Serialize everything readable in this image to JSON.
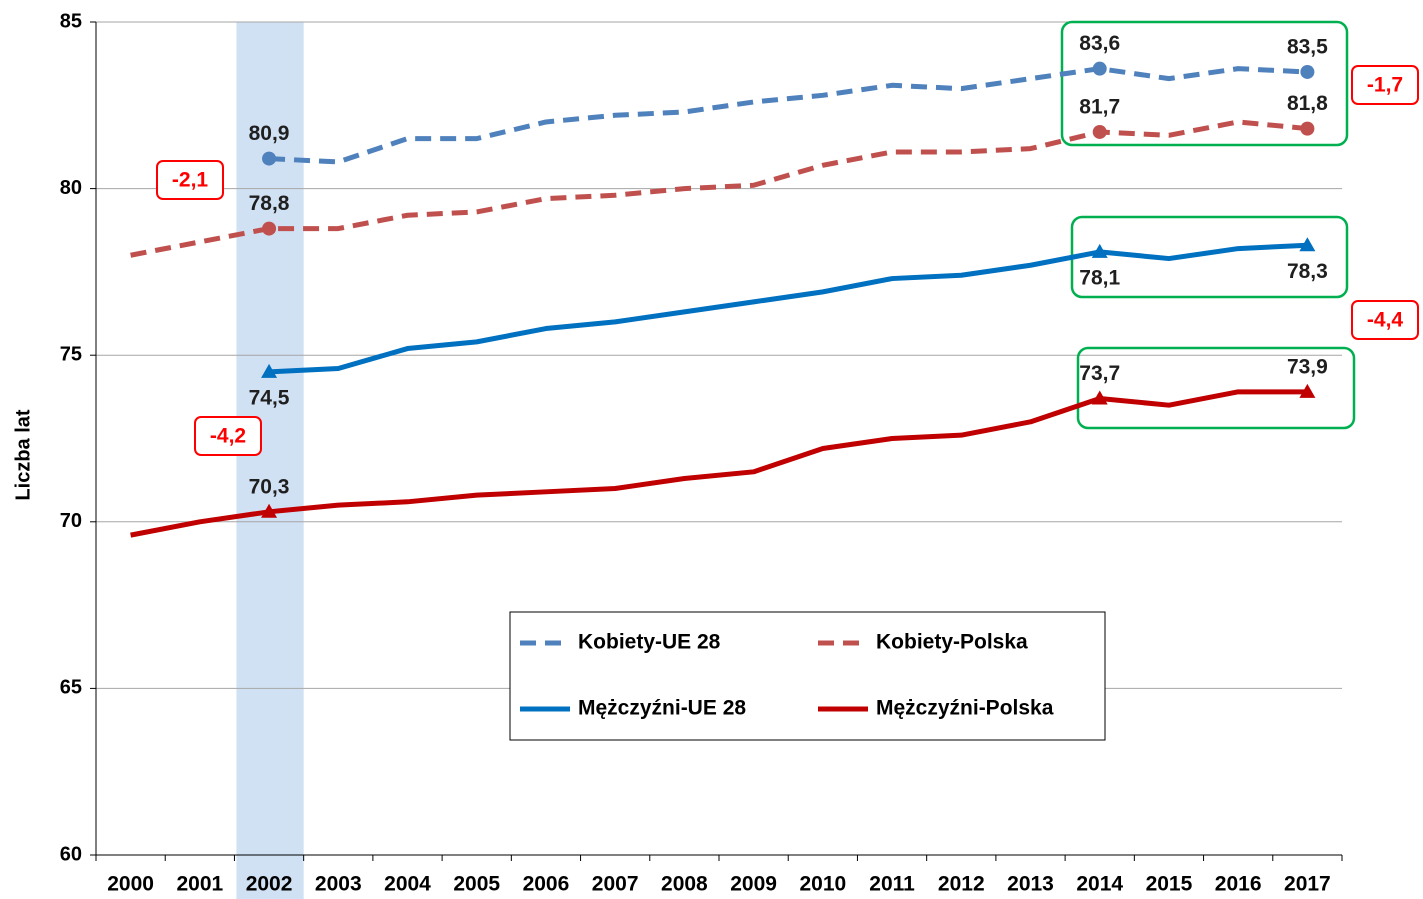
{
  "chart_data": {
    "type": "line",
    "y_label": "Liczba lat",
    "categories": [
      "2000",
      "2001",
      "2002",
      "2003",
      "2004",
      "2005",
      "2006",
      "2007",
      "2008",
      "2009",
      "2010",
      "2011",
      "2012",
      "2013",
      "2014",
      "2015",
      "2016",
      "2017"
    ],
    "highlight_category": "2002",
    "ylim": [
      60,
      85
    ],
    "yticks": [
      60,
      65,
      70,
      75,
      80,
      85
    ],
    "grid": true,
    "series": [
      {
        "name": "Kobiety-UE 28",
        "color": "#4f81bd",
        "dash": true,
        "values": [
          null,
          null,
          80.9,
          80.8,
          81.5,
          81.5,
          82.0,
          82.2,
          82.3,
          82.6,
          82.8,
          83.1,
          83.0,
          83.3,
          83.6,
          83.3,
          83.6,
          83.5
        ],
        "value_labels": [
          null,
          null,
          "80,9",
          null,
          null,
          null,
          null,
          null,
          null,
          null,
          null,
          null,
          null,
          null,
          "83,6",
          null,
          null,
          "83,5"
        ]
      },
      {
        "name": "Kobiety-Polska",
        "color": "#c0504d",
        "dash": true,
        "values": [
          78.0,
          78.4,
          78.8,
          78.8,
          79.2,
          79.3,
          79.7,
          79.8,
          80.0,
          80.1,
          80.7,
          81.1,
          81.1,
          81.2,
          81.7,
          81.6,
          82.0,
          81.8
        ],
        "value_labels": [
          null,
          null,
          "78,8",
          null,
          null,
          null,
          null,
          null,
          null,
          null,
          null,
          null,
          null,
          null,
          "81,7",
          null,
          null,
          "81,8"
        ]
      },
      {
        "name": "Mężczyźni-UE 28",
        "color": "#0070c0",
        "dash": false,
        "values": [
          null,
          null,
          74.5,
          74.6,
          75.2,
          75.4,
          75.8,
          76.0,
          76.3,
          76.6,
          76.9,
          77.3,
          77.4,
          77.7,
          78.1,
          77.9,
          78.2,
          78.3
        ],
        "value_labels": [
          null,
          null,
          "74,5",
          null,
          null,
          null,
          null,
          null,
          null,
          null,
          null,
          null,
          null,
          null,
          "78,1",
          null,
          null,
          "78,3"
        ]
      },
      {
        "name": "Mężczyźni-Polska",
        "color": "#c00000",
        "dash": false,
        "values": [
          69.6,
          70.0,
          70.3,
          70.5,
          70.6,
          70.8,
          70.9,
          71.0,
          71.3,
          71.5,
          72.2,
          72.5,
          72.6,
          73.0,
          73.7,
          73.5,
          73.9,
          73.9
        ],
        "value_labels": [
          null,
          null,
          "70,3",
          null,
          null,
          null,
          null,
          null,
          null,
          null,
          null,
          null,
          null,
          null,
          "73,7",
          null,
          null,
          "73,9"
        ]
      }
    ],
    "annotations": [
      {
        "text": "-2,1",
        "value": -2.1
      },
      {
        "text": "-4,2",
        "value": -4.2
      },
      {
        "text": "-1,7",
        "value": -1.7
      },
      {
        "text": "-4,4",
        "value": -4.4
      }
    ]
  }
}
